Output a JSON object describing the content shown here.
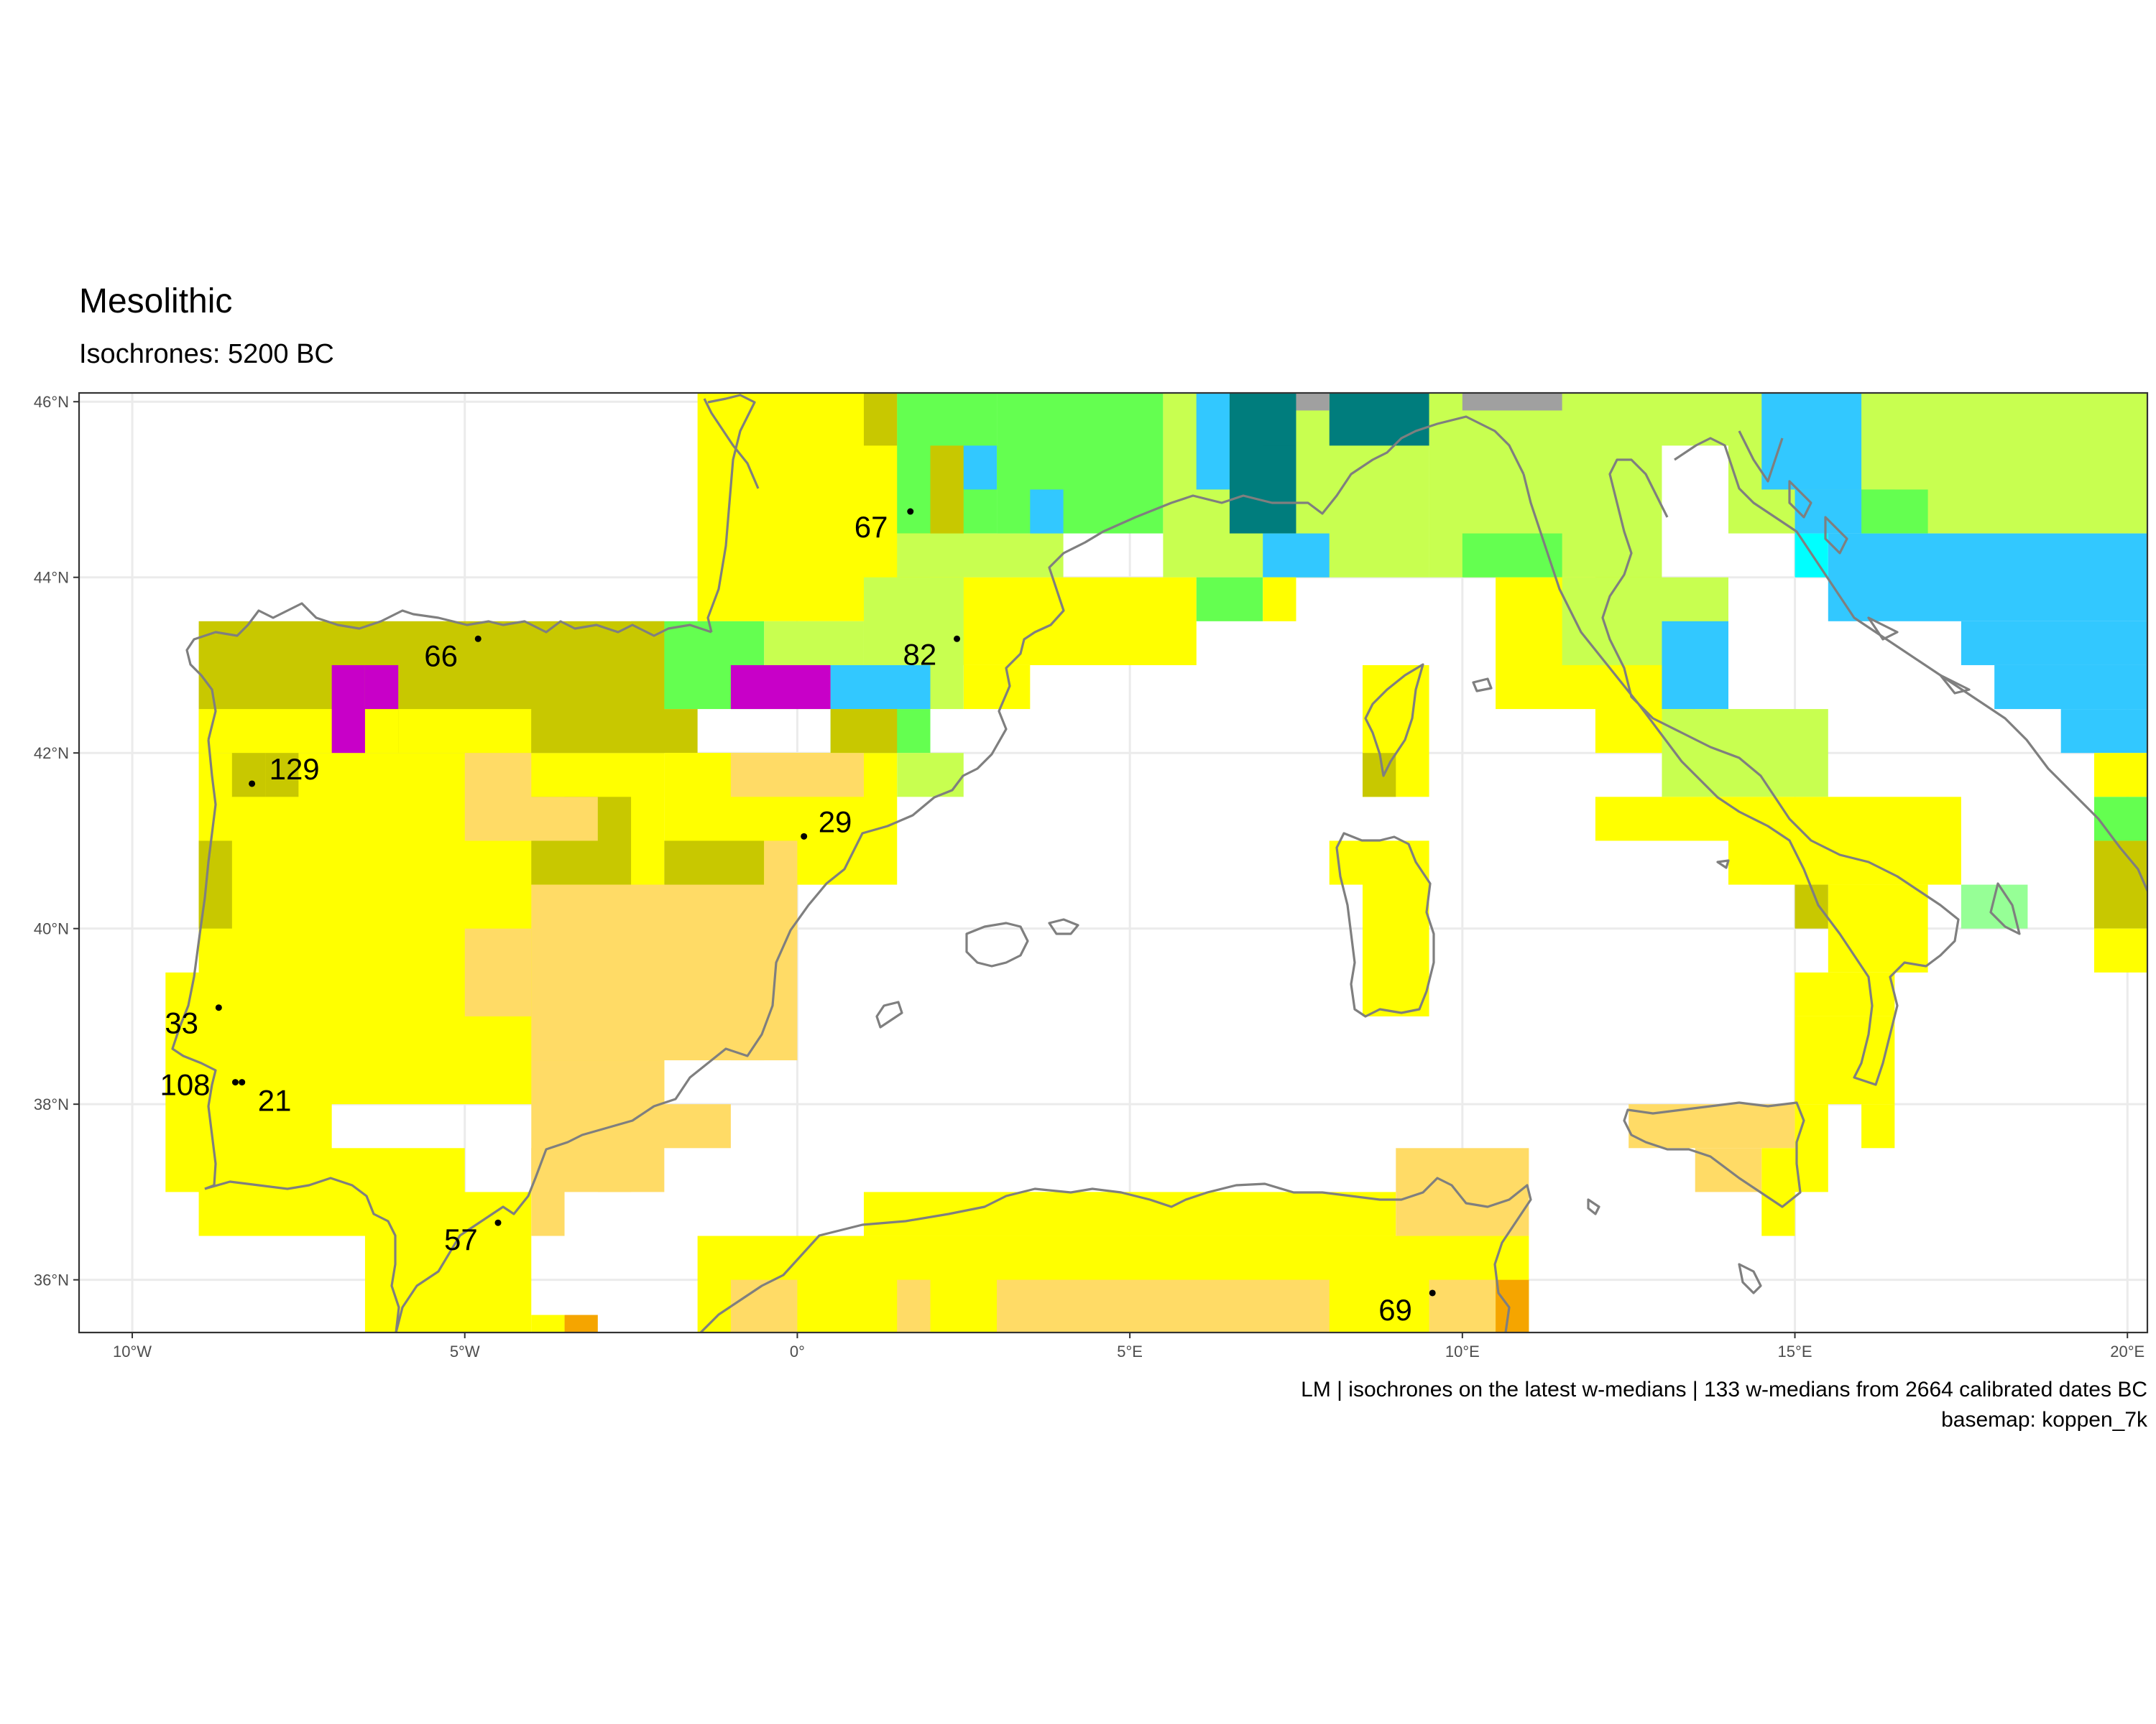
{
  "title": "Mesolithic",
  "subtitle": "Isochrones: 5200 BC",
  "caption": {
    "line1": "LM | isochrones on the latest w-medians | 133 w-medians from 2664 calibrated dates BC",
    "line2": "basemap: koppen_7k"
  },
  "axes": {
    "x_ticks": [
      {
        "value": -10,
        "label": "10°W"
      },
      {
        "value": -5,
        "label": "5°W"
      },
      {
        "value": 0,
        "label": "0°"
      },
      {
        "value": 5,
        "label": "5°E"
      },
      {
        "value": 10,
        "label": "10°E"
      },
      {
        "value": 15,
        "label": "15°E"
      },
      {
        "value": 20,
        "label": "20°E"
      }
    ],
    "y_ticks": [
      {
        "value": 36,
        "label": "36°N"
      },
      {
        "value": 38,
        "label": "38°N"
      },
      {
        "value": 40,
        "label": "40°N"
      },
      {
        "value": 42,
        "label": "42°N"
      },
      {
        "value": 44,
        "label": "44°N"
      },
      {
        "value": 46,
        "label": "46°N"
      }
    ],
    "xlim": [
      -10.8,
      20.3
    ],
    "ylim": [
      35.4,
      46.1
    ]
  },
  "sites": [
    {
      "label": "67",
      "lon": 1.7,
      "lat": 44.75
    },
    {
      "label": "82",
      "lon": 2.4,
      "lat": 43.3
    },
    {
      "label": "66",
      "lon": -4.8,
      "lat": 43.3
    },
    {
      "label": "129",
      "lon": -8.2,
      "lat": 41.65
    },
    {
      "label": "29",
      "lon": 0.1,
      "lat": 41.05
    },
    {
      "label": "33",
      "lon": -8.7,
      "lat": 39.1
    },
    {
      "label": "108",
      "lon": -8.45,
      "lat": 38.25
    },
    {
      "label": "21",
      "lon": -8.35,
      "lat": 38.25
    },
    {
      "label": "57",
      "lon": -4.5,
      "lat": 36.65
    },
    {
      "label": "69",
      "lon": 9.55,
      "lat": 35.85
    }
  ],
  "colors": {
    "panel_border": "#333333",
    "grid": "#ebebeb",
    "coast": "#7f7f7f"
  },
  "basemap_colors": {
    "yellow": "#ffff00",
    "sand": "#ffdb66",
    "olive": "#c8c800",
    "lime": "#c8ff50",
    "green": "#64ff50",
    "sky": "#32c8ff",
    "teal": "#007d7d",
    "magenta": "#c800c8",
    "cyan": "#00ffff",
    "mint": "#96ff96",
    "orange": "#f5a500",
    "gray": "#a0a0a0"
  }
}
